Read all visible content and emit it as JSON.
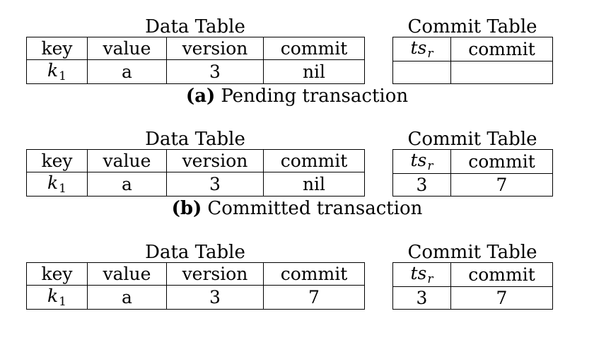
{
  "panels": [
    {
      "data_title": "Data Table",
      "commit_title": "Commit Table",
      "data_headers": [
        "key",
        "value",
        "version",
        "commit"
      ],
      "data_row": {
        "key_var": "k",
        "key_sub": "1",
        "value": "a",
        "version": "3",
        "commit": "nil"
      },
      "commit_headers": {
        "ts_var": "ts",
        "ts_sub": "r",
        "commit": "commit"
      },
      "commit_row": {
        "ts": "",
        "commit": ""
      },
      "label_tag": "(a)",
      "label_text": "Pending transaction"
    },
    {
      "data_title": "Data Table",
      "commit_title": "Commit Table",
      "data_headers": [
        "key",
        "value",
        "version",
        "commit"
      ],
      "data_row": {
        "key_var": "k",
        "key_sub": "1",
        "value": "a",
        "version": "3",
        "commit": "nil"
      },
      "commit_headers": {
        "ts_var": "ts",
        "ts_sub": "r",
        "commit": "commit"
      },
      "commit_row": {
        "ts": "3",
        "commit": "7"
      },
      "label_tag": "(b)",
      "label_text": "Committed transaction"
    },
    {
      "data_title": "Data Table",
      "commit_title": "Commit Table",
      "data_headers": [
        "key",
        "value",
        "version",
        "commit"
      ],
      "data_row": {
        "key_var": "k",
        "key_sub": "1",
        "value": "a",
        "version": "3",
        "commit": "7"
      },
      "commit_headers": {
        "ts_var": "ts",
        "ts_sub": "r",
        "commit": "commit"
      },
      "commit_row": {
        "ts": "3",
        "commit": "7"
      }
    }
  ]
}
